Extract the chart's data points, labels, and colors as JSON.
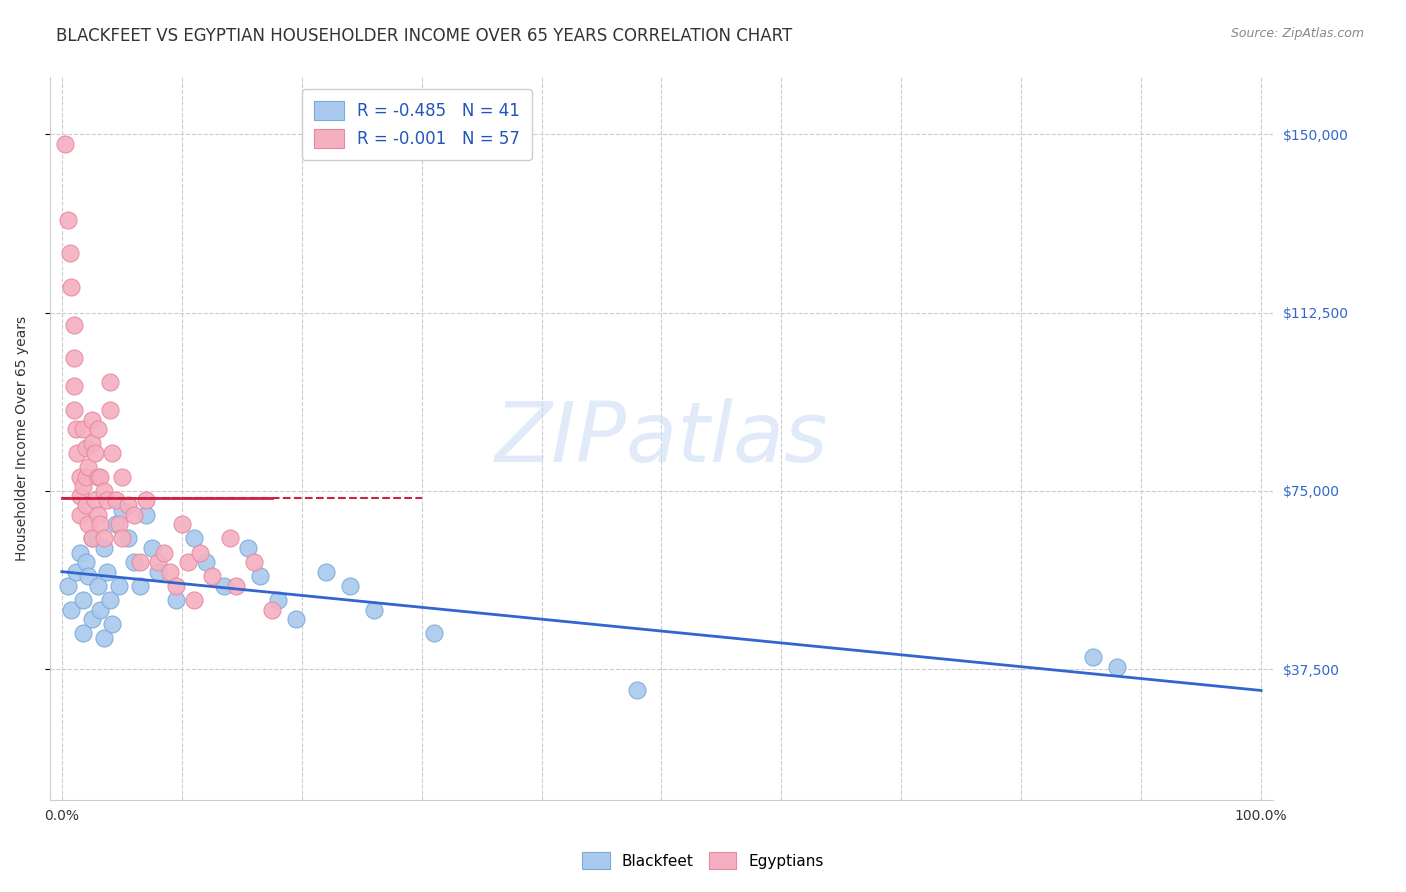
{
  "title": "BLACKFEET VS EGYPTIAN HOUSEHOLDER INCOME OVER 65 YEARS CORRELATION CHART",
  "source": "Source: ZipAtlas.com",
  "ylabel": "Householder Income Over 65 years",
  "xlim": [
    -0.01,
    1.01
  ],
  "ylim": [
    10000,
    162000
  ],
  "yticks": [
    37500,
    75000,
    112500,
    150000
  ],
  "ytick_labels": [
    "$37,500",
    "$75,000",
    "$112,500",
    "$150,000"
  ],
  "legend_blue_text": "R = -0.485   N = 41",
  "legend_pink_text": "R = -0.001   N = 57",
  "legend_blue_label": "Blackfeet",
  "legend_pink_label": "Egyptians",
  "blue_color": "#aac9ee",
  "pink_color": "#f4afc0",
  "blue_edge": "#7aaad8",
  "pink_edge": "#e888a0",
  "trend_blue_color": "#3366cc",
  "trend_pink_color": "#cc2244",
  "background_color": "#ffffff",
  "grid_color": "#cccccc",
  "watermark": "ZIPatlas",
  "blackfeet_x": [
    0.005,
    0.008,
    0.012,
    0.015,
    0.018,
    0.018,
    0.02,
    0.022,
    0.025,
    0.025,
    0.03,
    0.032,
    0.035,
    0.035,
    0.038,
    0.04,
    0.042,
    0.045,
    0.048,
    0.05,
    0.055,
    0.06,
    0.065,
    0.07,
    0.075,
    0.08,
    0.095,
    0.11,
    0.12,
    0.135,
    0.155,
    0.165,
    0.18,
    0.195,
    0.22,
    0.24,
    0.26,
    0.31,
    0.48,
    0.86,
    0.88
  ],
  "blackfeet_y": [
    55000,
    50000,
    58000,
    62000,
    52000,
    45000,
    60000,
    57000,
    65000,
    48000,
    55000,
    50000,
    63000,
    44000,
    58000,
    52000,
    47000,
    68000,
    55000,
    71000,
    65000,
    60000,
    55000,
    70000,
    63000,
    58000,
    52000,
    65000,
    60000,
    55000,
    63000,
    57000,
    52000,
    48000,
    58000,
    55000,
    50000,
    45000,
    33000,
    40000,
    38000
  ],
  "egyptians_x": [
    0.003,
    0.005,
    0.007,
    0.008,
    0.01,
    0.01,
    0.01,
    0.01,
    0.012,
    0.013,
    0.015,
    0.015,
    0.015,
    0.018,
    0.018,
    0.02,
    0.02,
    0.02,
    0.022,
    0.022,
    0.025,
    0.025,
    0.025,
    0.028,
    0.028,
    0.03,
    0.03,
    0.03,
    0.032,
    0.032,
    0.035,
    0.035,
    0.038,
    0.04,
    0.04,
    0.042,
    0.045,
    0.048,
    0.05,
    0.05,
    0.055,
    0.06,
    0.065,
    0.07,
    0.08,
    0.085,
    0.09,
    0.095,
    0.1,
    0.105,
    0.11,
    0.115,
    0.125,
    0.14,
    0.145,
    0.16,
    0.175
  ],
  "egyptians_y": [
    148000,
    132000,
    125000,
    118000,
    110000,
    103000,
    97000,
    92000,
    88000,
    83000,
    78000,
    74000,
    70000,
    88000,
    76000,
    84000,
    78000,
    72000,
    80000,
    68000,
    90000,
    85000,
    65000,
    83000,
    73000,
    88000,
    78000,
    70000,
    78000,
    68000,
    75000,
    65000,
    73000,
    98000,
    92000,
    83000,
    73000,
    68000,
    78000,
    65000,
    72000,
    70000,
    60000,
    73000,
    60000,
    62000,
    58000,
    55000,
    68000,
    60000,
    52000,
    62000,
    57000,
    65000,
    55000,
    60000,
    50000
  ],
  "title_fontsize": 12,
  "axis_label_fontsize": 10,
  "tick_fontsize": 10,
  "source_fontsize": 9
}
